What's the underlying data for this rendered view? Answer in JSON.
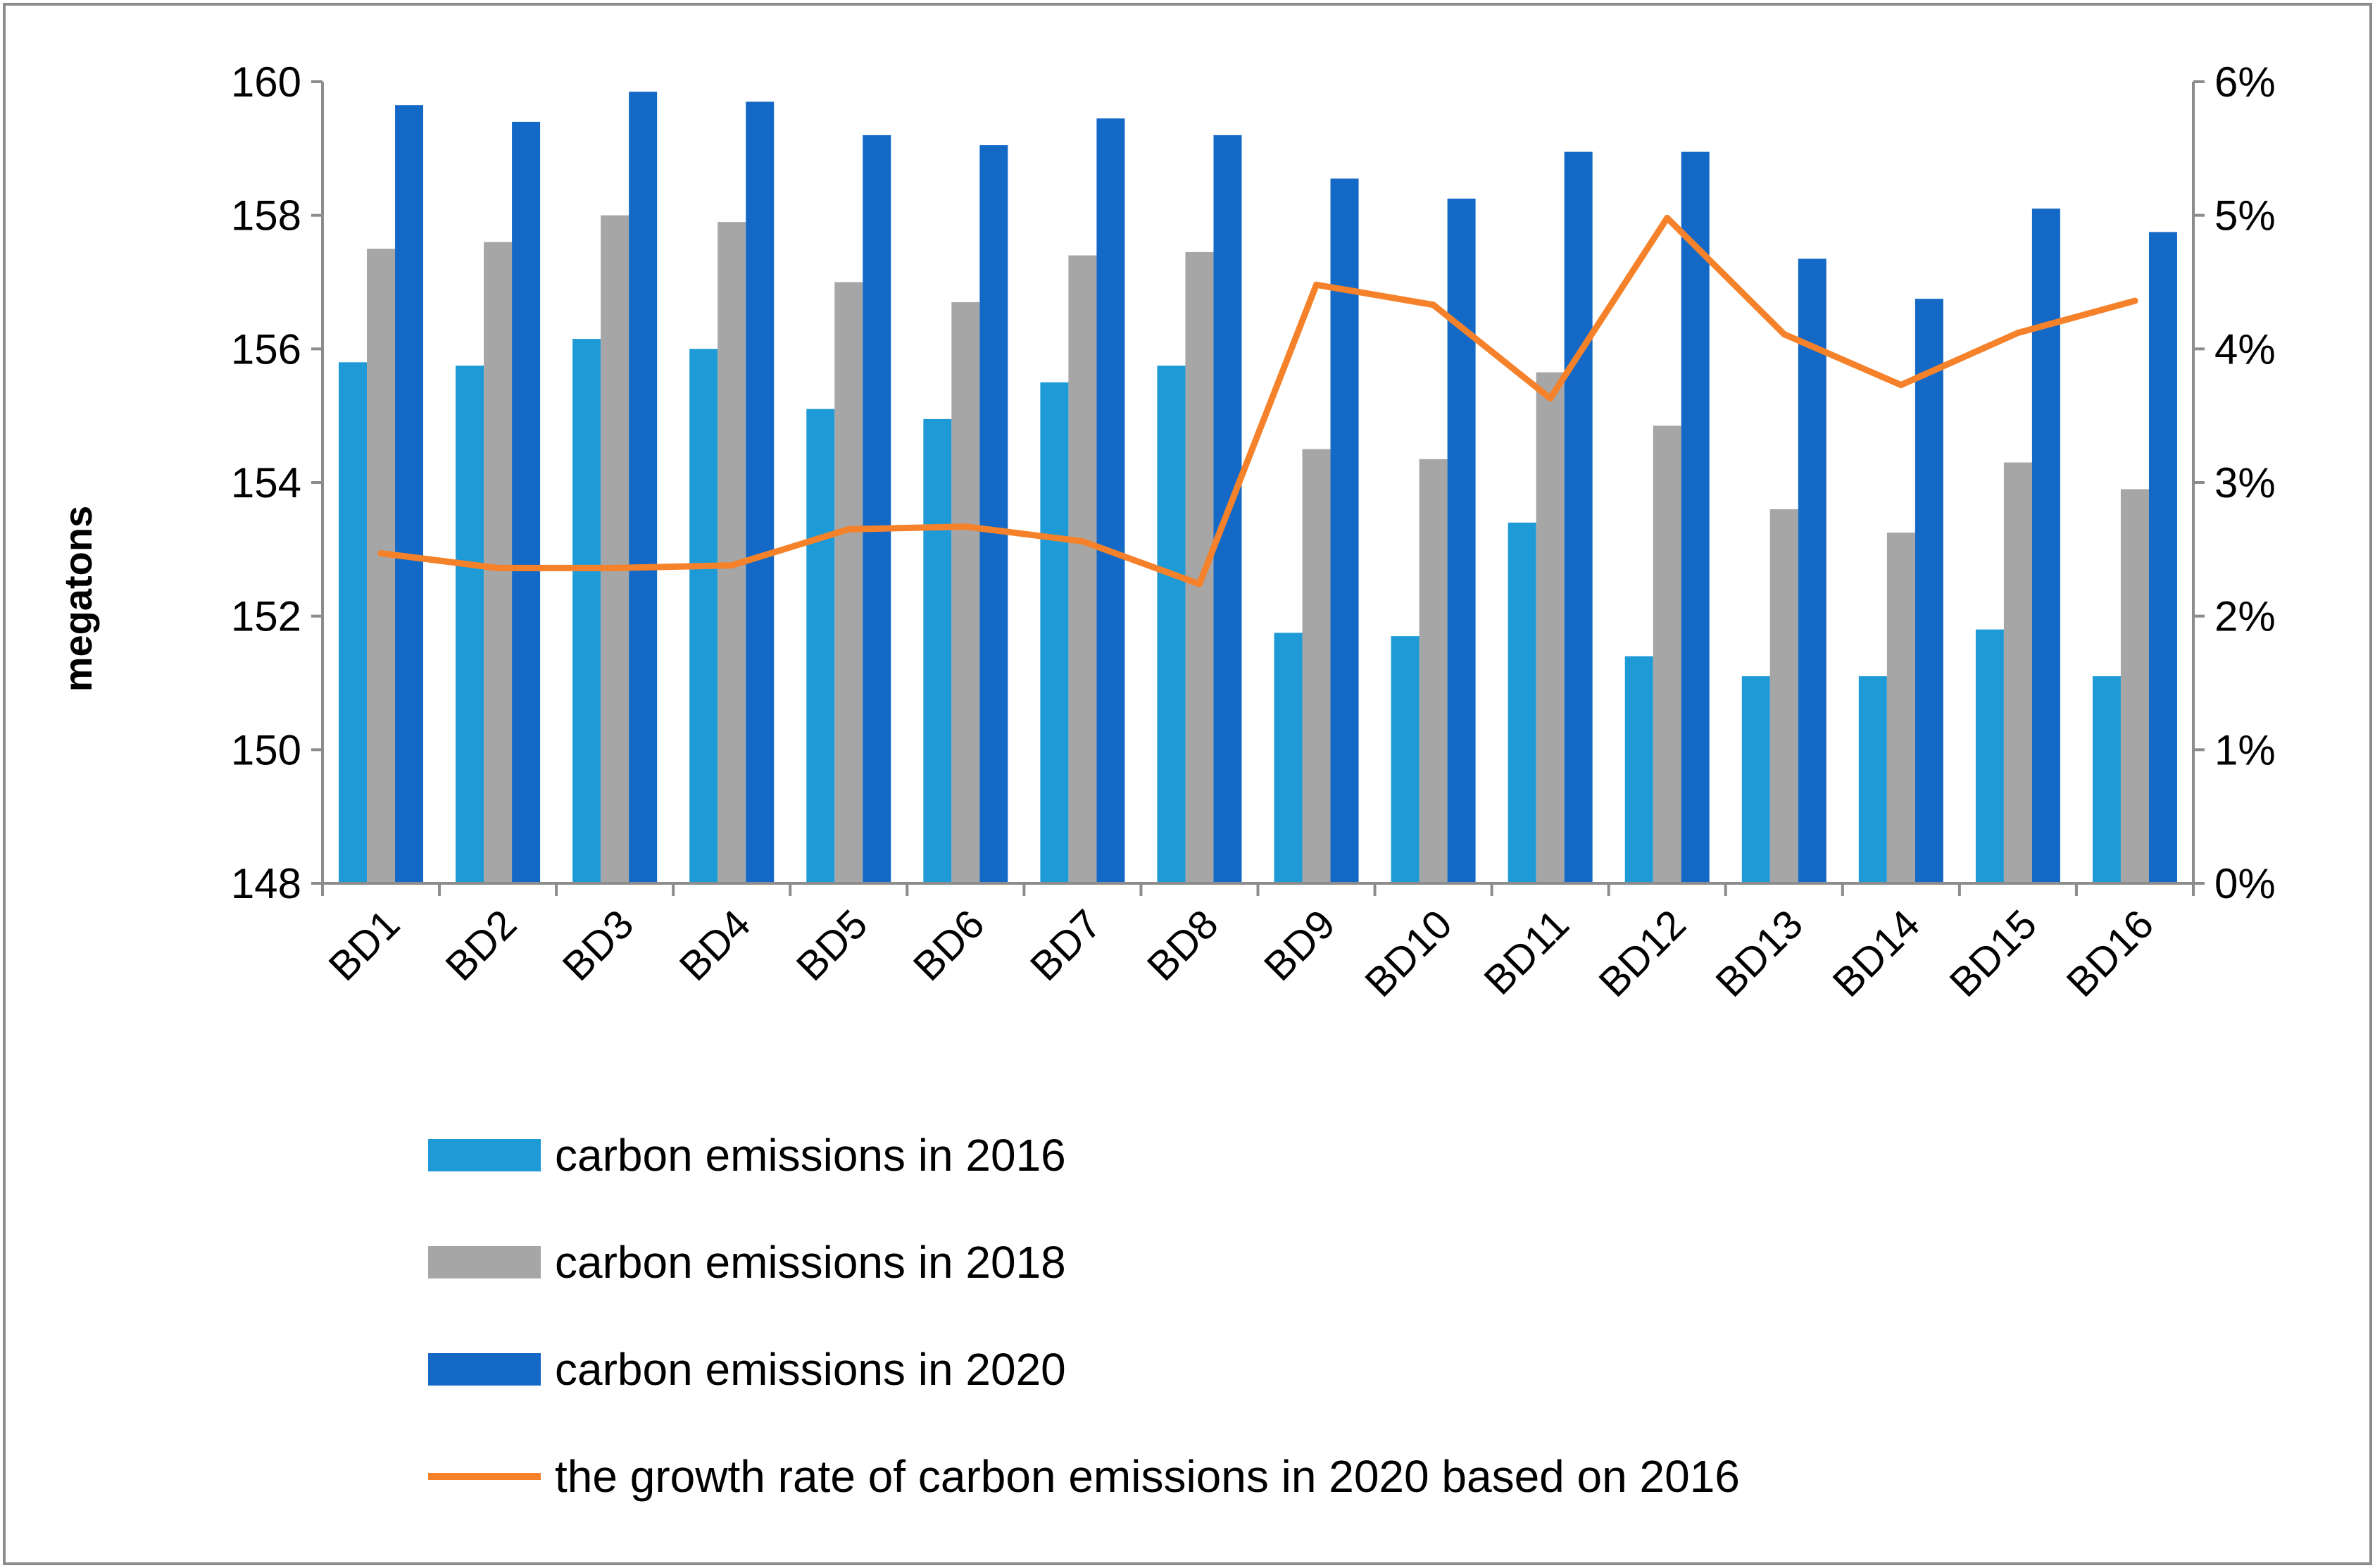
{
  "chart_data": {
    "type": "bar",
    "title": "",
    "xlabel": "",
    "ylabel": "megatons",
    "y2label": "",
    "ylim": [
      148,
      160
    ],
    "y2lim": [
      0,
      6
    ],
    "y_ticks": [
      "148",
      "150",
      "152",
      "154",
      "156",
      "158",
      "160"
    ],
    "y2_ticks": [
      "0%",
      "1%",
      "2%",
      "3%",
      "4%",
      "5%",
      "6%"
    ],
    "categories": [
      "BD1",
      "BD2",
      "BD3",
      "BD4",
      "BD5",
      "BD6",
      "BD7",
      "BD8",
      "BD9",
      "BD10",
      "BD11",
      "BD12",
      "BD13",
      "BD14",
      "BD15",
      "BD16"
    ],
    "series": [
      {
        "name": "carbon emissions in 2016",
        "kind": "bar",
        "axis": "left",
        "color": "#1e9ad6",
        "values": [
          155.8,
          155.75,
          156.15,
          156.0,
          155.1,
          154.95,
          155.5,
          155.75,
          151.75,
          151.7,
          153.4,
          151.4,
          151.1,
          151.1,
          151.8,
          151.1
        ]
      },
      {
        "name": "carbon emissions in 2018",
        "kind": "bar",
        "axis": "left",
        "color": "#a6a6a6",
        "values": [
          157.5,
          157.6,
          158.0,
          157.9,
          157.0,
          156.7,
          157.4,
          157.45,
          154.5,
          154.35,
          155.65,
          154.85,
          153.6,
          153.25,
          154.3,
          153.9
        ]
      },
      {
        "name": "carbon emissions in 2020",
        "kind": "bar",
        "axis": "left",
        "color": "#1469c6",
        "values": [
          159.65,
          159.4,
          159.85,
          159.7,
          159.2,
          159.05,
          159.45,
          159.2,
          158.55,
          158.25,
          158.95,
          158.95,
          157.35,
          156.75,
          158.1,
          157.75
        ]
      },
      {
        "name": "the growth rate of carbon emissions in 2020 based on 2016",
        "kind": "line",
        "axis": "right",
        "color": "#f5822a",
        "values": [
          2.47,
          2.36,
          2.36,
          2.38,
          2.65,
          2.67,
          2.56,
          2.24,
          4.48,
          4.33,
          3.63,
          4.98,
          4.11,
          3.73,
          4.12,
          4.36
        ]
      }
    ],
    "legend_position": "bottom",
    "grid": false
  }
}
